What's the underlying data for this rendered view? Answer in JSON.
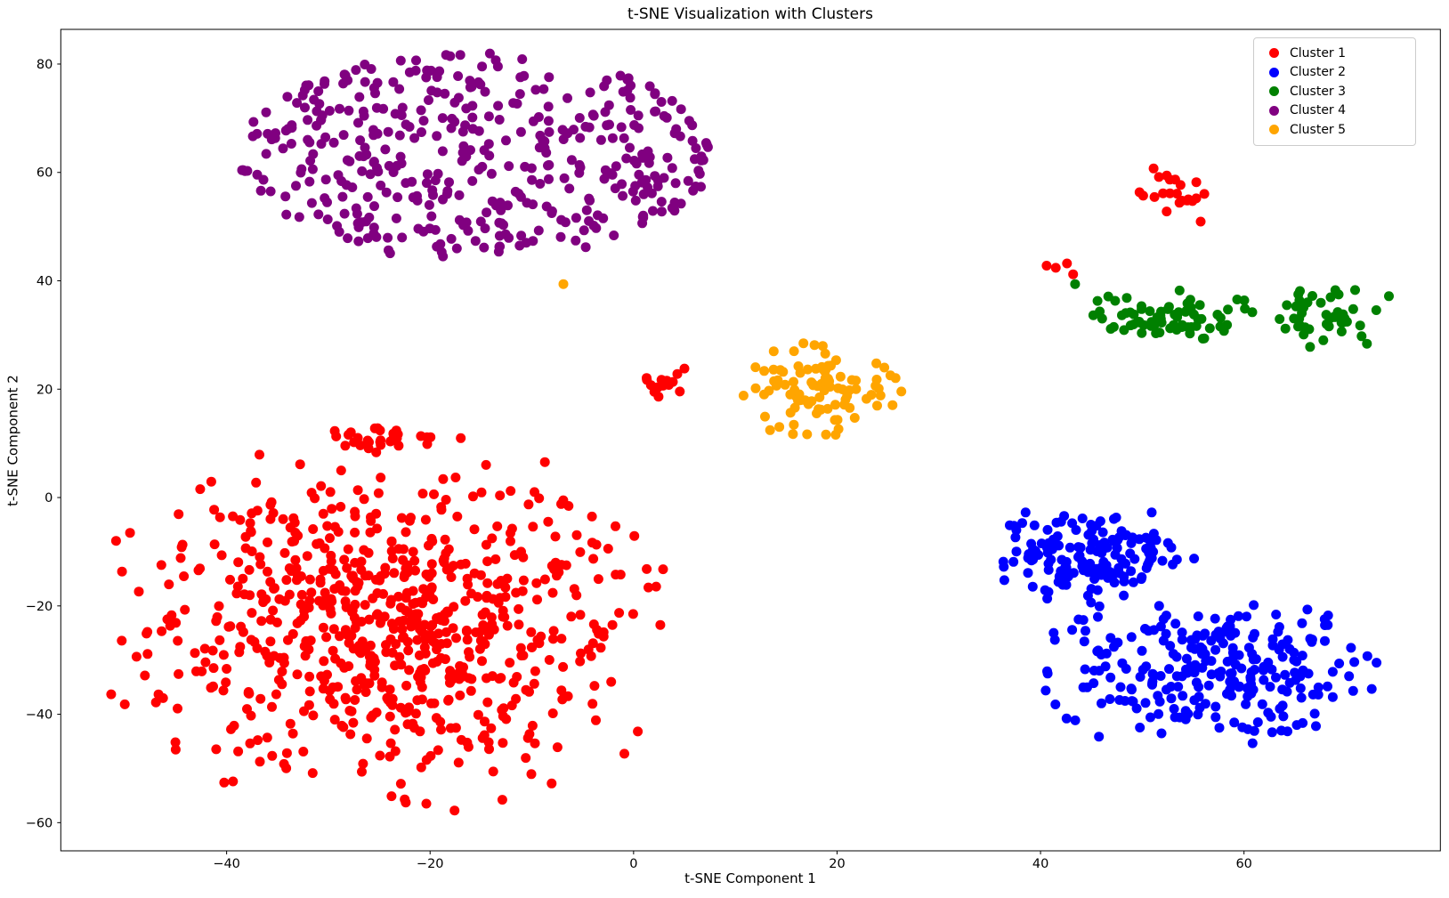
{
  "chart_data": {
    "type": "scatter",
    "title": "t-SNE Visualization with Clusters",
    "xlabel": "t-SNE Component 1",
    "ylabel": "t-SNE Component 2",
    "xlim": [
      -56.3,
      79.3
    ],
    "ylim": [
      -65.2,
      86.4
    ],
    "x_ticks": [
      -40,
      -20,
      0,
      20,
      40,
      60
    ],
    "y_ticks": [
      -60,
      -40,
      -20,
      0,
      20,
      40,
      60,
      80
    ],
    "grid": false,
    "marker_diameter_px": 11,
    "axis_color": "#000000",
    "legend": {
      "position": "upper right"
    },
    "series": [
      {
        "name": "Cluster 1",
        "color": "#FF0000",
        "blobs": [
          {
            "seed": 11,
            "count": 720,
            "dist": "gauss",
            "cx": -23.5,
            "cy": -23.5,
            "sx": 12.5,
            "sy": 14.5,
            "rmax": 2.45,
            "clip": [
              -51.5,
              4.5,
              -58.5,
              9.5
            ]
          },
          {
            "seed": 12,
            "count": 30,
            "dist": "gauss",
            "cx": -23.5,
            "cy": 10.8,
            "sx": 3.2,
            "sy": 1.5,
            "rmax": 2.2,
            "clip": [
              -30,
              -16,
              8,
              13.6
            ]
          },
          {
            "seed": 13,
            "count": 13,
            "dist": "gauss",
            "cx": 2.7,
            "cy": 20.6,
            "sx": 1.1,
            "sy": 1.1,
            "rmax": 2.0,
            "clip": [
              0.8,
              5.0,
              18.3,
              23.5
            ]
          },
          {
            "seed": 14,
            "count": 22,
            "dist": "gauss",
            "cx": 53.2,
            "cy": 55.8,
            "sx": 2.2,
            "sy": 2.9,
            "rmax": 2.1,
            "clip": [
              49.3,
              56.8,
              49.8,
              61.8
            ]
          }
        ],
        "points": [
          [
            40.6,
            42.8
          ],
          [
            41.5,
            42.4
          ],
          [
            42.6,
            43.2
          ],
          [
            43.2,
            41.2
          ],
          [
            4.3,
            22.8
          ],
          [
            5.0,
            23.8
          ]
        ]
      },
      {
        "name": "Cluster 2",
        "color": "#0000FF",
        "blobs": [
          {
            "seed": 21,
            "count": 150,
            "dist": "gauss",
            "cx": 44.5,
            "cy": -10.5,
            "sx": 5.4,
            "sy": 4.4,
            "rmax": 2.3,
            "clip": [
              36.2,
              59.0,
              -20.5,
              -2.6
            ]
          },
          {
            "seed": 22,
            "count": 255,
            "dist": "gauss",
            "cx": 56.8,
            "cy": -31.5,
            "sx": 8.2,
            "sy": 6.8,
            "rmax": 2.3,
            "clip": [
              40.5,
              73.2,
              -48.5,
              -19.2
            ]
          }
        ],
        "points": []
      },
      {
        "name": "Cluster 3",
        "color": "#008000",
        "blobs": [
          {
            "seed": 31,
            "count": 72,
            "dist": "gauss",
            "cx": 52.2,
            "cy": 33.4,
            "sx": 4.4,
            "sy": 2.4,
            "rmax": 2.2,
            "clip": [
              44.8,
              62.6,
              28.8,
              38.5
            ]
          },
          {
            "seed": 32,
            "count": 46,
            "dist": "gauss",
            "cx": 68.3,
            "cy": 34.2,
            "sx": 3.1,
            "sy": 3.4,
            "rmax": 2.2,
            "clip": [
              62.8,
              74.3,
              27.3,
              41.3
            ]
          }
        ],
        "points": [
          [
            43.4,
            39.4
          ]
        ]
      },
      {
        "name": "Cluster 4",
        "color": "#800080",
        "blobs": [
          {
            "seed": 41,
            "count": 430,
            "dist": "uniform",
            "cx": -15.5,
            "cy": 63.0,
            "sx": 23.3,
            "sy": 19.3,
            "clip": [
              -38.6,
              7.6,
              44.0,
              82.2
            ]
          }
        ],
        "points": []
      },
      {
        "name": "Cluster 5",
        "color": "#FFA500",
        "blobs": [
          {
            "seed": 51,
            "count": 96,
            "dist": "gauss",
            "cx": 17.9,
            "cy": 20.3,
            "sx": 4.2,
            "sy": 4.4,
            "rmax": 2.15,
            "clip": [
              9.9,
              27.0,
              10.1,
              28.9
            ]
          }
        ],
        "points": [
          [
            -6.9,
            39.4
          ]
        ]
      }
    ]
  }
}
